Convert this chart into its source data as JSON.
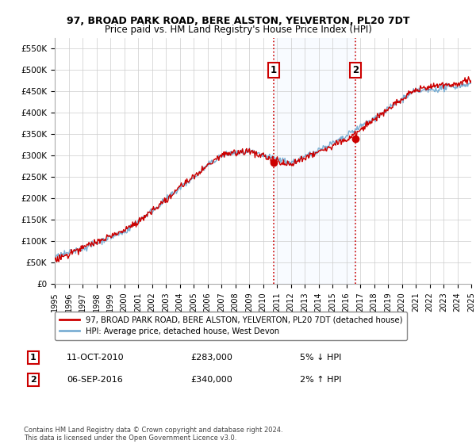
{
  "title": "97, BROAD PARK ROAD, BERE ALSTON, YELVERTON, PL20 7DT",
  "subtitle": "Price paid vs. HM Land Registry's House Price Index (HPI)",
  "ylim": [
    0,
    575000
  ],
  "yticks": [
    0,
    50000,
    100000,
    150000,
    200000,
    250000,
    300000,
    350000,
    400000,
    450000,
    500000,
    550000
  ],
  "ytick_labels": [
    "£0",
    "£50K",
    "£100K",
    "£150K",
    "£200K",
    "£250K",
    "£300K",
    "£350K",
    "£400K",
    "£450K",
    "£500K",
    "£550K"
  ],
  "x_start_year": 1995,
  "x_end_year": 2025,
  "transaction1_year": 2010.78,
  "transaction1_price": 283000,
  "transaction2_year": 2016.67,
  "transaction2_price": 340000,
  "hpi_color": "#7bafd4",
  "price_color": "#cc0000",
  "shade_color": "#ddeeff",
  "legend1": "97, BROAD PARK ROAD, BERE ALSTON, YELVERTON, PL20 7DT (detached house)",
  "legend2": "HPI: Average price, detached house, West Devon",
  "label1_date": "11-OCT-2010",
  "label1_price": "£283,000",
  "label1_change": "5% ↓ HPI",
  "label2_date": "06-SEP-2016",
  "label2_price": "£340,000",
  "label2_change": "2% ↑ HPI",
  "footer": "Contains HM Land Registry data © Crown copyright and database right 2024.\nThis data is licensed under the Open Government Licence v3.0.",
  "np_seed": 42
}
